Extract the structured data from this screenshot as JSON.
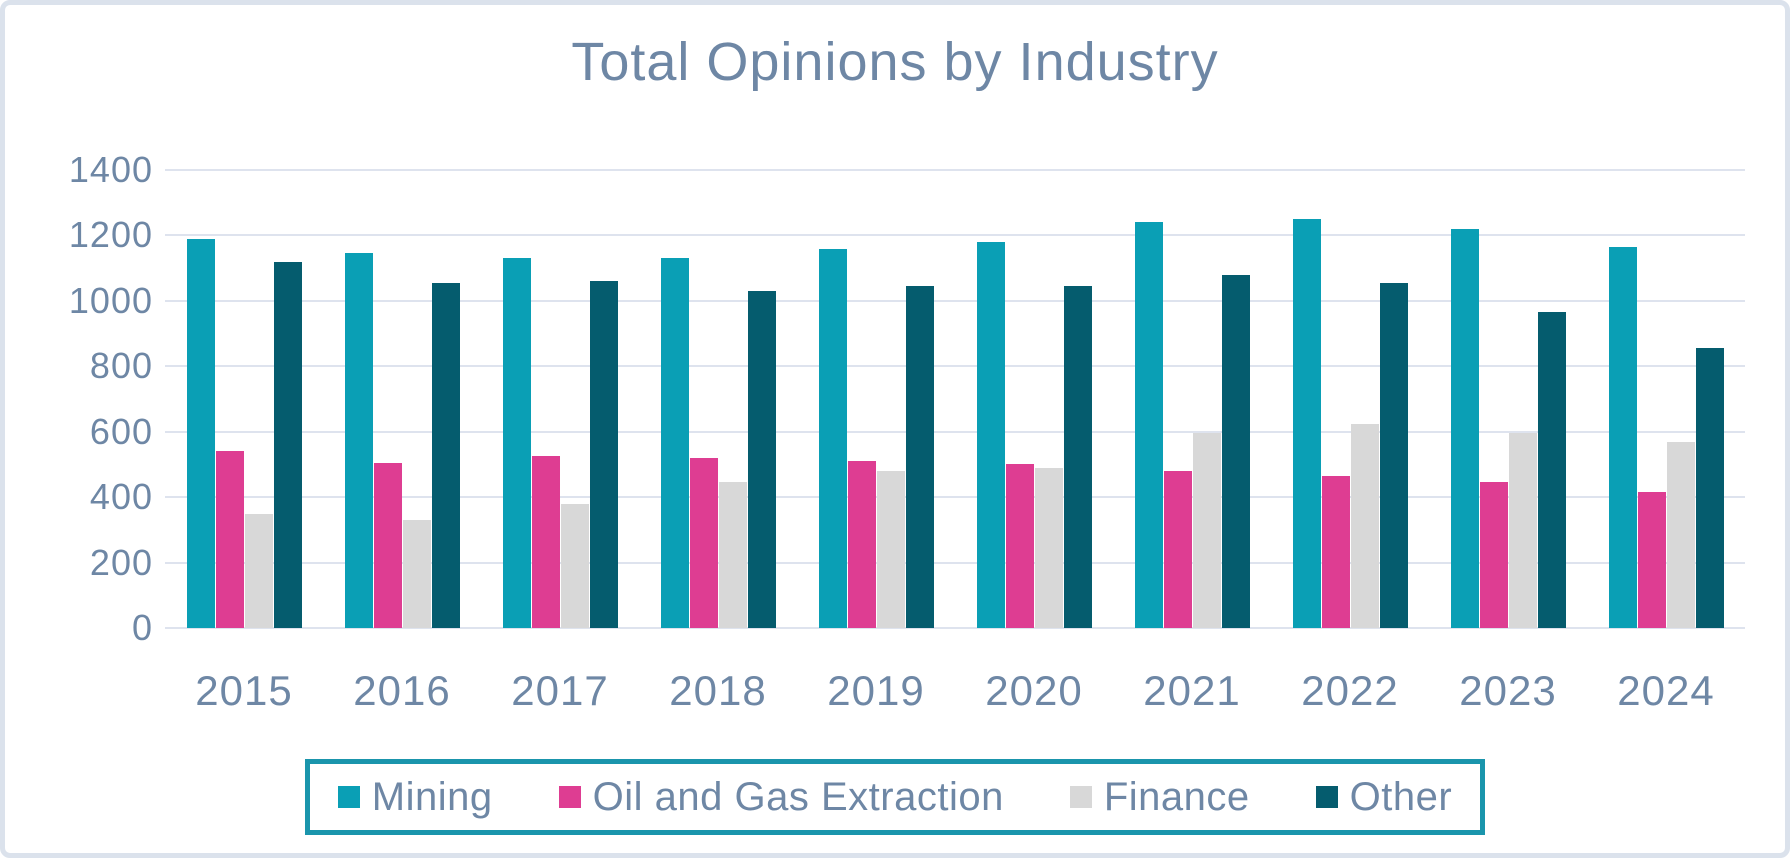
{
  "title": "Total Opinions by Industry",
  "chart_data": {
    "type": "bar",
    "title": "Total Opinions by Industry",
    "categories": [
      "2015",
      "2016",
      "2017",
      "2018",
      "2019",
      "2020",
      "2021",
      "2022",
      "2023",
      "2024"
    ],
    "series": [
      {
        "name": "Mining",
        "color": "#0a9fb5",
        "values": [
          1190,
          1145,
          1130,
          1130,
          1160,
          1180,
          1240,
          1250,
          1220,
          1165
        ]
      },
      {
        "name": "Oil and Gas Extraction",
        "color": "#de3d92",
        "values": [
          540,
          505,
          525,
          520,
          510,
          500,
          480,
          465,
          445,
          415
        ]
      },
      {
        "name": "Finance",
        "color": "#d8d8d8",
        "values": [
          350,
          330,
          380,
          445,
          480,
          490,
          595,
          625,
          595,
          570
        ]
      },
      {
        "name": "Other",
        "color": "#055c6e",
        "values": [
          1120,
          1055,
          1060,
          1030,
          1045,
          1045,
          1080,
          1055,
          965,
          855
        ]
      }
    ],
    "xlabel": "",
    "ylabel": "",
    "ylim": [
      0,
      1400
    ],
    "y_ticks": [
      1400,
      1200,
      1000,
      800,
      600,
      400,
      200,
      0
    ],
    "grid": true,
    "legend_position": "bottom"
  },
  "colors": {
    "background": "#ffffff",
    "frame_border": "#dbe2ec",
    "grid": "#dee3ee",
    "text": "#6e87a5",
    "legend_border": "#1a95ac"
  }
}
